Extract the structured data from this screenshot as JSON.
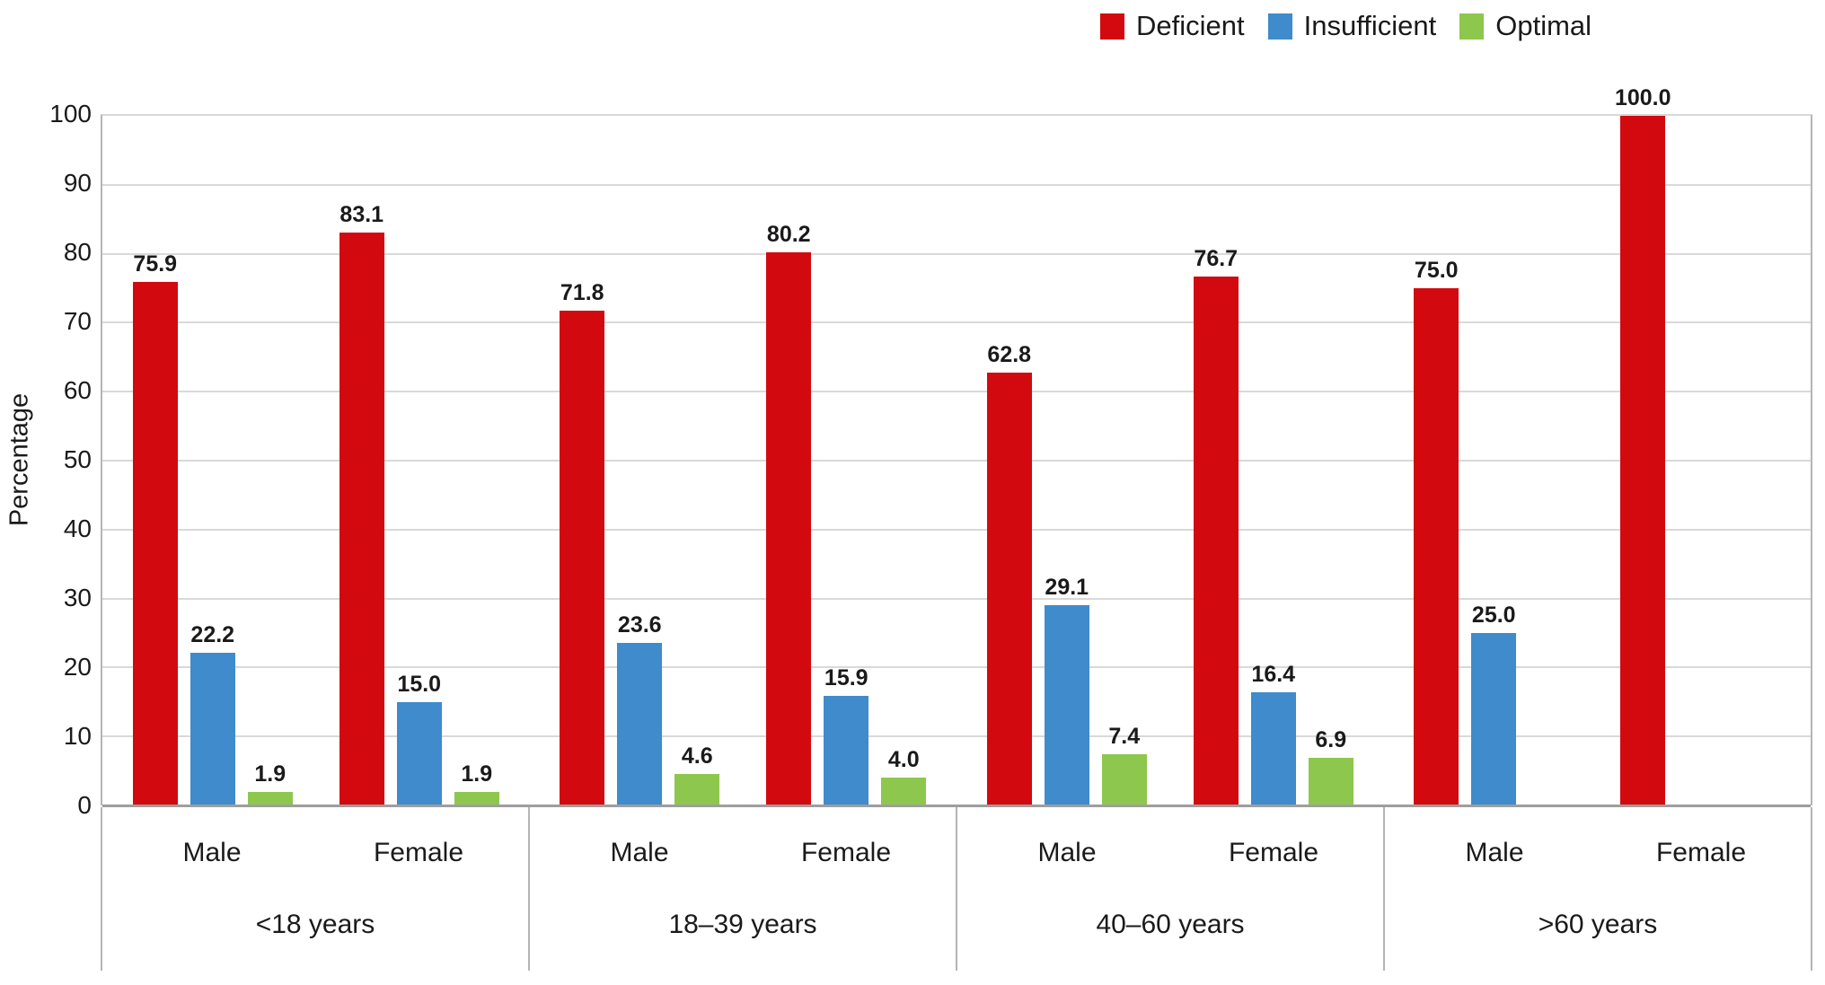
{
  "chart_data": {
    "type": "bar",
    "ylabel": "Percentage",
    "ylim": [
      0,
      100
    ],
    "yticks": [
      0,
      10,
      20,
      30,
      40,
      50,
      60,
      70,
      80,
      90,
      100
    ],
    "grid": "horizontal",
    "legend_position": "top-right",
    "series_names": [
      "Deficient",
      "Insufficient",
      "Optimal"
    ],
    "series_colors": [
      "#d20a10",
      "#3f8bcb",
      "#8ec74d"
    ],
    "categories": [
      "<18 years",
      "18–39 years",
      "40–60 years",
      ">60 years"
    ],
    "subcategories": [
      "Male",
      "Female"
    ],
    "groups": [
      {
        "label": "<18 years",
        "clusters": [
          {
            "label": "Male",
            "values": [
              "75.9",
              "22.2",
              "1.9"
            ]
          },
          {
            "label": "Female",
            "values": [
              "83.1",
              "15.0",
              "1.9"
            ]
          }
        ]
      },
      {
        "label": "18–39 years",
        "clusters": [
          {
            "label": "Male",
            "values": [
              "71.8",
              "23.6",
              "4.6"
            ]
          },
          {
            "label": "Female",
            "values": [
              "80.2",
              "15.9",
              "4.0"
            ]
          }
        ]
      },
      {
        "label": "40–60 years",
        "clusters": [
          {
            "label": "Male",
            "values": [
              "62.8",
              "29.1",
              "7.4"
            ]
          },
          {
            "label": "Female",
            "values": [
              "76.7",
              "16.4",
              "6.9"
            ]
          }
        ]
      },
      {
        "label": ">60 years",
        "clusters": [
          {
            "label": "Male",
            "values": [
              "75.0",
              "25.0",
              null
            ]
          },
          {
            "label": "Female",
            "values": [
              "100.0",
              null,
              null
            ]
          }
        ]
      }
    ]
  }
}
